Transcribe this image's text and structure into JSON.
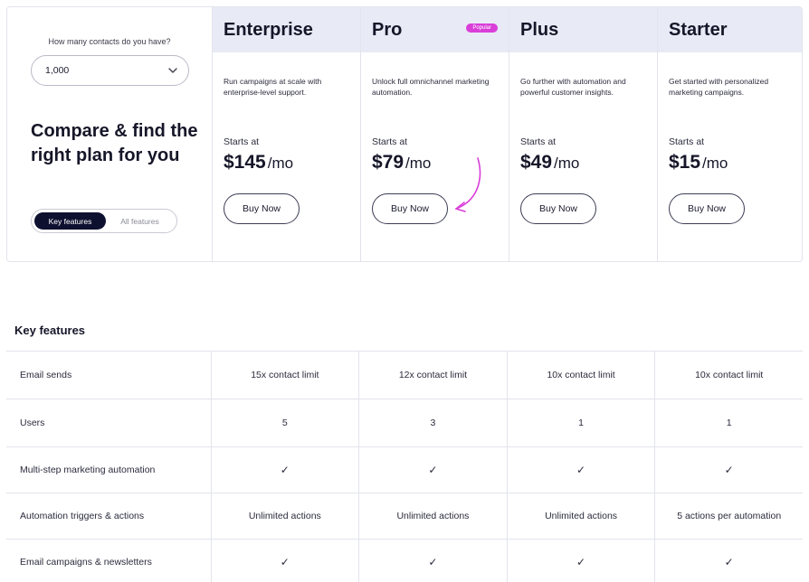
{
  "selector": {
    "question": "How many contacts do you have?",
    "value": "1,000"
  },
  "headline": "Compare & find the right plan for you",
  "toggle": {
    "active": "Key features",
    "inactive": "All features"
  },
  "plans": [
    {
      "name": "Enterprise",
      "description": "Run campaigns at scale with enterprise-level support.",
      "starts_label": "Starts at",
      "price": "$145",
      "period": "/mo",
      "button": "Buy Now"
    },
    {
      "name": "Pro",
      "badge": "Popular",
      "description": "Unlock full omnichannel marketing automation.",
      "starts_label": "Starts at",
      "price": "$79",
      "period": "/mo",
      "button": "Buy Now"
    },
    {
      "name": "Plus",
      "description": "Go further with automation and powerful customer insights.",
      "starts_label": "Starts at",
      "price": "$49",
      "period": "/mo",
      "button": "Buy Now"
    },
    {
      "name": "Starter",
      "description": "Get started with personalized marketing campaigns.",
      "starts_label": "Starts at",
      "price": "$15",
      "period": "/mo",
      "button": "Buy Now"
    }
  ],
  "features": {
    "title": "Key features",
    "rows": [
      {
        "label": "Email sends",
        "values": [
          "15x contact limit",
          "12x contact limit",
          "10x contact limit",
          "10x contact limit"
        ]
      },
      {
        "label": "Users",
        "values": [
          "5",
          "3",
          "1",
          "1"
        ]
      },
      {
        "label": "Multi-step marketing automation",
        "values": [
          "✓",
          "✓",
          "✓",
          "✓"
        ]
      },
      {
        "label": "Automation triggers & actions",
        "values": [
          "Unlimited actions",
          "Unlimited actions",
          "Unlimited actions",
          "5 actions per automation"
        ]
      },
      {
        "label": "Email campaigns & newsletters",
        "values": [
          "✓",
          "✓",
          "✓",
          "✓"
        ]
      }
    ]
  },
  "colors": {
    "header_bg": "#e8eaf6",
    "toggle_active_bg": "#0e1030",
    "badge_bg": "#d93ed8",
    "arrow": "#d93ed8"
  },
  "icons": {
    "select": "chevron-down-icon",
    "check": "check-icon",
    "arrow": "curved-arrow-icon"
  }
}
